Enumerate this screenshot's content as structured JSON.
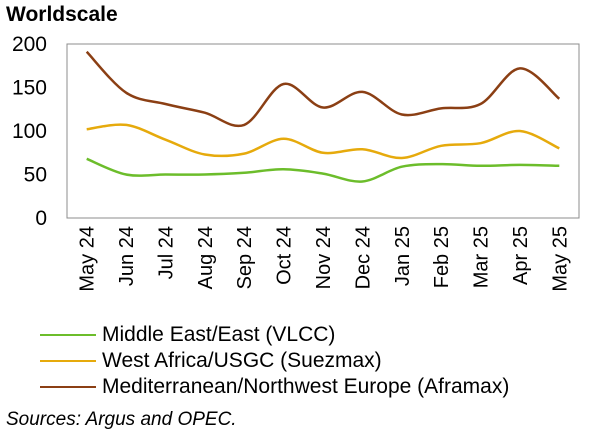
{
  "chart_data": {
    "type": "line",
    "title": "Worldscale",
    "xlabel": "",
    "ylabel": "Worldscale",
    "ylim": [
      0,
      200
    ],
    "yticks": [
      0,
      50,
      100,
      150,
      200
    ],
    "grid": false,
    "legend_position": "bottom",
    "categories": [
      "May 24",
      "Jun 24",
      "Jul 24",
      "Aug 24",
      "Sep 24",
      "Oct 24",
      "Nov 24",
      "Dec 24",
      "Jan 25",
      "Feb 25",
      "Mar 25",
      "Apr 25",
      "May 25"
    ],
    "series": [
      {
        "name": "Middle East/East (VLCC)",
        "color": "#6cbd2b",
        "values": [
          68,
          50,
          50,
          50,
          52,
          56,
          51,
          42,
          59,
          62,
          60,
          61,
          60
        ]
      },
      {
        "name": "West Africa/USGC (Suezmax)",
        "color": "#e6aa0c",
        "values": [
          102,
          107,
          90,
          73,
          74,
          91,
          75,
          79,
          69,
          83,
          86,
          100,
          80
        ]
      },
      {
        "name": "Mediterranean/Northwest Europe (Aframax)",
        "color": "#8b3f14",
        "values": [
          191,
          144,
          131,
          121,
          107,
          154,
          127,
          145,
          119,
          126,
          131,
          172,
          137
        ]
      }
    ]
  },
  "source_note": "Sources: Argus and OPEC."
}
